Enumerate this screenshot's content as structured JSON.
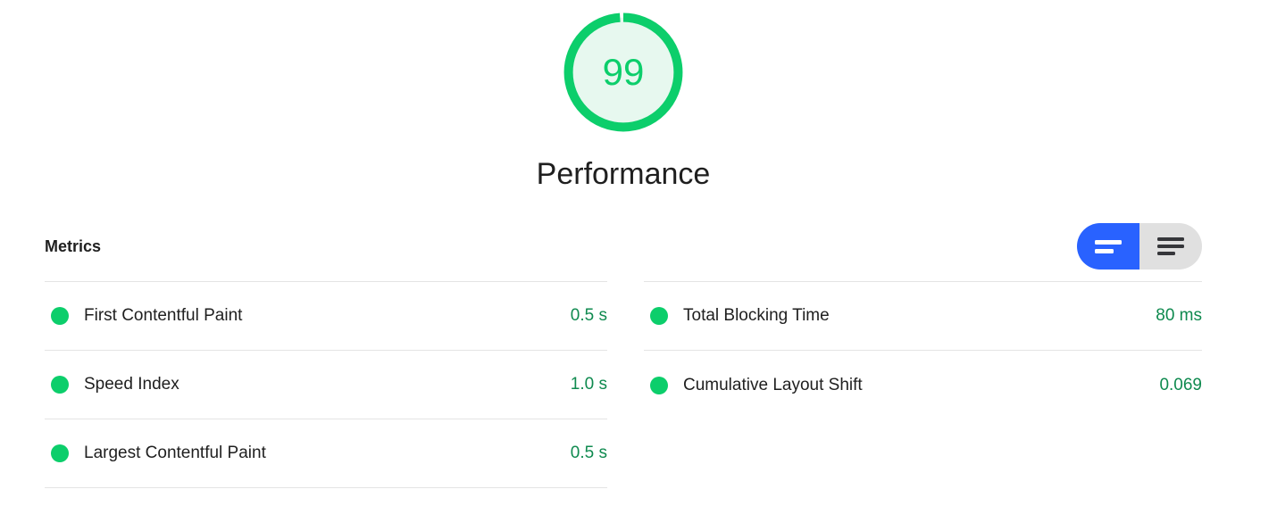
{
  "category": {
    "score": 99,
    "title": "Performance"
  },
  "metrics_section": {
    "heading": "Metrics",
    "view_toggle": {
      "options": [
        {
          "icon": "condensed-view-icon",
          "selected": true
        },
        {
          "icon": "expanded-view-icon",
          "selected": false
        }
      ]
    },
    "columns": {
      "left": [
        {
          "name": "First Contentful Paint",
          "value": "0.5 s",
          "status": "pass"
        },
        {
          "name": "Speed Index",
          "value": "1.0 s",
          "status": "pass"
        },
        {
          "name": "Largest Contentful Paint",
          "value": "0.5 s",
          "status": "pass"
        }
      ],
      "right": [
        {
          "name": "Total Blocking Time",
          "value": "80 ms",
          "status": "pass"
        },
        {
          "name": "Cumulative Layout Shift",
          "value": "0.069",
          "status": "pass"
        }
      ]
    }
  },
  "colors": {
    "pass_green": "#0cce6b",
    "gauge_fill": "#e7f8ef",
    "value_green": "#0f8a4f",
    "toggle_blue": "#2962ff",
    "toggle_gray": "#e0e0e0",
    "divider": "#e4e4e4",
    "text_dark": "#1f1f1f"
  }
}
